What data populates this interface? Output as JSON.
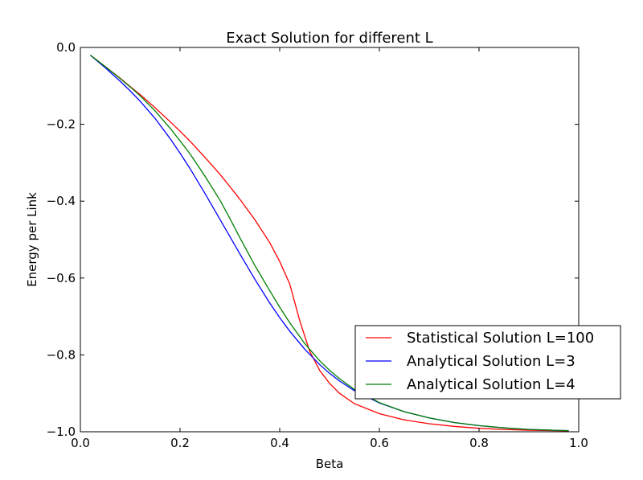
{
  "chart_data": {
    "type": "line",
    "title": "Exact Solution for different L",
    "xlabel": "Beta",
    "ylabel": "Energy per Link",
    "xlim": [
      0.0,
      1.0
    ],
    "ylim": [
      -1.0,
      0.0
    ],
    "xticks": [
      "0.0",
      "0.2",
      "0.4",
      "0.6",
      "0.8",
      "1.0"
    ],
    "yticks": [
      "0.0",
      "−0.2",
      "−0.4",
      "−0.6",
      "−0.8",
      "−1.0"
    ],
    "grid": false,
    "legend_position": "lower right",
    "series": [
      {
        "name": "Statistical Solution L=100",
        "color": "#ff0000",
        "x": [
          0.02,
          0.05,
          0.08,
          0.1,
          0.12,
          0.15,
          0.18,
          0.2,
          0.22,
          0.25,
          0.28,
          0.3,
          0.32,
          0.35,
          0.38,
          0.4,
          0.42,
          0.44,
          0.46,
          0.48,
          0.5,
          0.52,
          0.55,
          0.6,
          0.65,
          0.7,
          0.75,
          0.8,
          0.85,
          0.9,
          0.95,
          0.98
        ],
        "y": [
          -0.02,
          -0.05,
          -0.08,
          -0.102,
          -0.123,
          -0.157,
          -0.193,
          -0.218,
          -0.244,
          -0.286,
          -0.33,
          -0.362,
          -0.395,
          -0.448,
          -0.508,
          -0.557,
          -0.615,
          -0.71,
          -0.79,
          -0.84,
          -0.874,
          -0.9,
          -0.927,
          -0.953,
          -0.969,
          -0.979,
          -0.986,
          -0.991,
          -0.994,
          -0.996,
          -0.997,
          -0.998
        ]
      },
      {
        "name": "Analytical Solution L=3",
        "color": "#0000ff",
        "x": [
          0.02,
          0.05,
          0.08,
          0.1,
          0.12,
          0.15,
          0.18,
          0.2,
          0.22,
          0.25,
          0.28,
          0.3,
          0.32,
          0.35,
          0.38,
          0.4,
          0.42,
          0.45,
          0.48,
          0.5,
          0.52,
          0.55,
          0.6,
          0.65,
          0.7,
          0.75,
          0.8,
          0.85,
          0.9,
          0.95,
          0.98
        ],
        "y": [
          -0.02,
          -0.053,
          -0.088,
          -0.113,
          -0.14,
          -0.185,
          -0.237,
          -0.275,
          -0.315,
          -0.38,
          -0.447,
          -0.492,
          -0.537,
          -0.603,
          -0.665,
          -0.703,
          -0.738,
          -0.785,
          -0.825,
          -0.848,
          -0.868,
          -0.893,
          -0.925,
          -0.948,
          -0.964,
          -0.976,
          -0.984,
          -0.99,
          -0.994,
          -0.996,
          -0.997
        ]
      },
      {
        "name": "Analytical Solution L=4",
        "color": "#008000",
        "x": [
          0.02,
          0.05,
          0.08,
          0.1,
          0.12,
          0.15,
          0.18,
          0.2,
          0.22,
          0.25,
          0.28,
          0.3,
          0.32,
          0.35,
          0.38,
          0.4,
          0.42,
          0.45,
          0.48,
          0.5,
          0.52,
          0.55,
          0.6,
          0.65,
          0.7,
          0.75,
          0.8,
          0.85,
          0.9,
          0.95,
          0.98
        ],
        "y": [
          -0.02,
          -0.05,
          -0.081,
          -0.103,
          -0.126,
          -0.165,
          -0.21,
          -0.243,
          -0.277,
          -0.335,
          -0.397,
          -0.445,
          -0.495,
          -0.567,
          -0.633,
          -0.676,
          -0.716,
          -0.77,
          -0.815,
          -0.84,
          -0.862,
          -0.89,
          -0.924,
          -0.948,
          -0.964,
          -0.976,
          -0.984,
          -0.99,
          -0.994,
          -0.996,
          -0.997
        ]
      }
    ]
  }
}
